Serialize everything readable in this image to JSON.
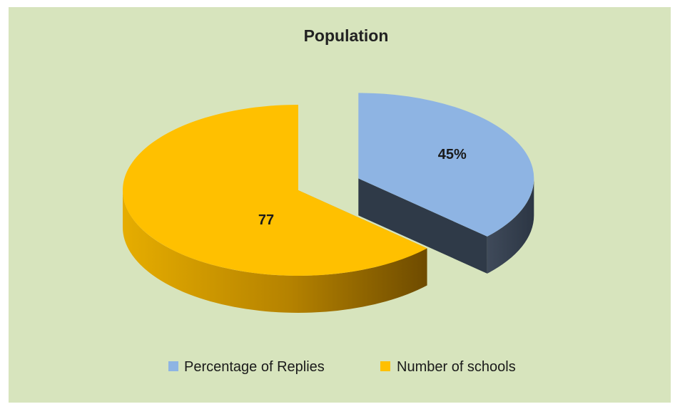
{
  "chart_data": {
    "type": "pie",
    "title": "Population",
    "categories": [
      "Percentage of Replies",
      "Number of schools"
    ],
    "values": [
      45,
      77
    ],
    "data_labels": [
      "45%",
      "77"
    ],
    "colors": {
      "Percentage of Replies": "#8eb4e3",
      "Number of schools": "#ffc000"
    },
    "exploded": [
      "Percentage of Replies"
    ],
    "three_d": true,
    "legend_position": "bottom",
    "background": "#d7e4bd"
  }
}
